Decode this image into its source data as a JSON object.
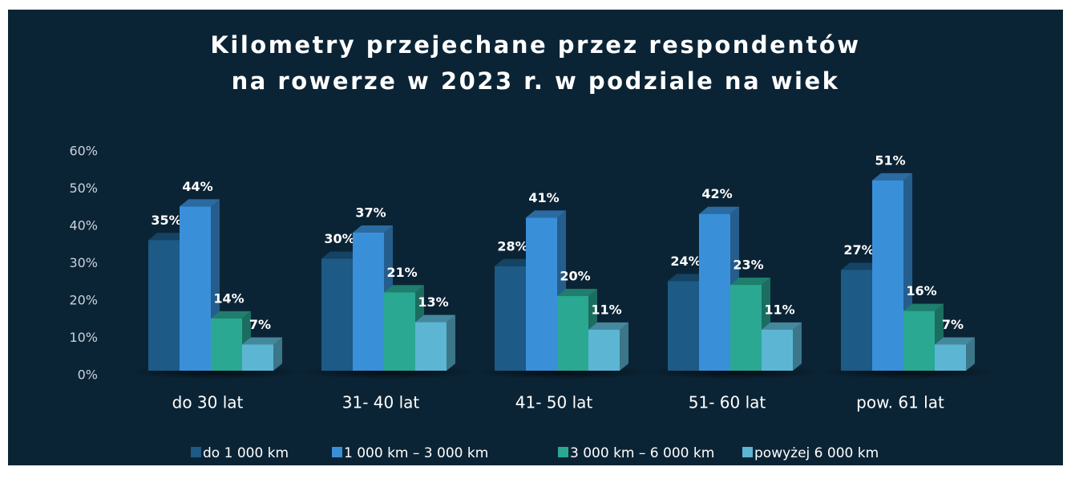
{
  "chart_data": {
    "type": "bar3d",
    "title": [
      "Kilometry przejechane przez respondentów",
      "na rowerze w 2023 r. w podziale na wiek"
    ],
    "categories": [
      "do 30 lat",
      "31- 40 lat",
      "41- 50 lat",
      "51- 60 lat",
      "pow. 61 lat"
    ],
    "series": [
      {
        "name": "do 1 000 km",
        "color": "#1d5a85",
        "values": [
          35,
          30,
          28,
          24,
          27
        ],
        "value_labels": [
          "35%",
          "30%",
          "28%",
          "24%",
          "27%"
        ]
      },
      {
        "name": "1 000 km – 3 000 km",
        "color": "#3a8fd9",
        "values": [
          44,
          37,
          41,
          42,
          51
        ],
        "value_labels": [
          "44%",
          "37%",
          "41%",
          "42%",
          "51%"
        ]
      },
      {
        "name": "3 000 km – 6 000 km",
        "color": "#2aa892",
        "values": [
          14,
          21,
          20,
          23,
          16
        ],
        "value_labels": [
          "14%",
          "21%",
          "20%",
          "23%",
          "16%"
        ]
      },
      {
        "name": "powyżej 6 000 km",
        "color": "#5cb6d3",
        "values": [
          7,
          13,
          11,
          11,
          7
        ],
        "value_labels": [
          "7%",
          "13%",
          "11%",
          "11%",
          "7%"
        ]
      }
    ],
    "ylim": [
      0,
      60
    ],
    "yticks": [
      {
        "value": 0,
        "label": "0%"
      },
      {
        "value": 10,
        "label": "10%"
      },
      {
        "value": 20,
        "label": "20%"
      },
      {
        "value": 30,
        "label": "30%"
      },
      {
        "value": 40,
        "label": "40%"
      },
      {
        "value": 50,
        "label": "50%"
      },
      {
        "value": 60,
        "label": "60%"
      }
    ],
    "grid": false,
    "legend": "bottom"
  }
}
